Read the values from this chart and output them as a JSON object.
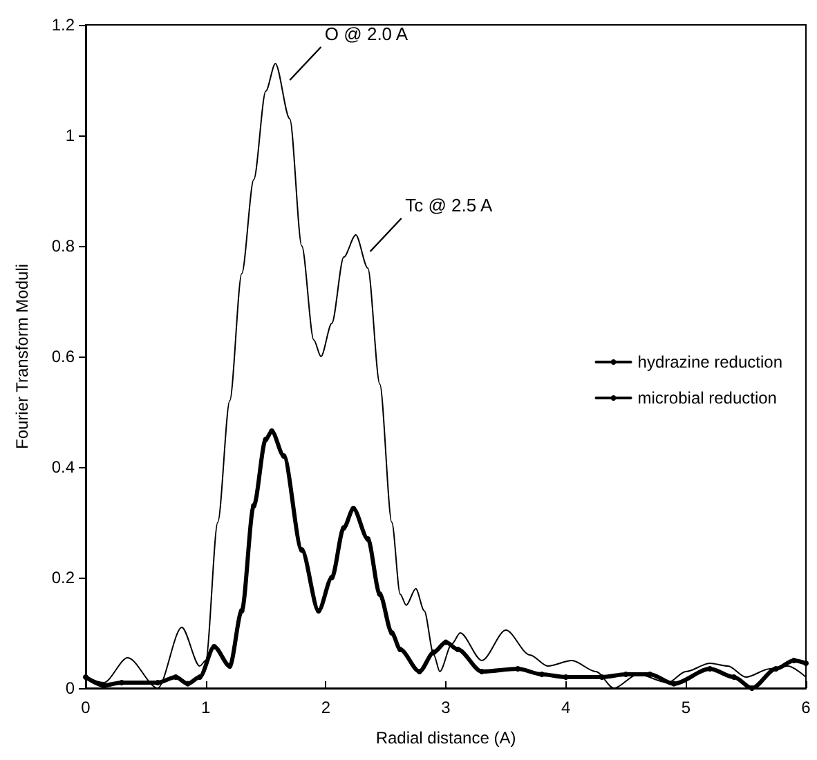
{
  "chart_data": {
    "type": "line",
    "xlabel": "Radial distance (A)",
    "ylabel": "Fourier Transform Moduli",
    "xlim": [
      0,
      6
    ],
    "xticks": [
      0,
      1,
      2,
      3,
      4,
      5,
      6
    ],
    "ylim": [
      0,
      1.2
    ],
    "yticks": [
      0,
      0.2,
      0.4,
      0.6,
      0.8,
      1,
      1.2
    ],
    "grid": false,
    "legend": "right",
    "series": [
      {
        "name": "hydrazine reduction",
        "color": "#000000",
        "marker": "circle",
        "x": [
          0,
          0.15,
          0.3,
          0.6,
          0.75,
          0.85,
          0.95,
          1.07,
          1.2,
          1.3,
          1.4,
          1.5,
          1.55,
          1.65,
          1.8,
          1.94,
          2.05,
          2.15,
          2.23,
          2.35,
          2.45,
          2.55,
          2.62,
          2.78,
          2.9,
          3.0,
          3.1,
          3.3,
          3.6,
          3.8,
          4.0,
          4.3,
          4.5,
          4.7,
          4.9,
          5.2,
          5.4,
          5.55,
          5.75,
          5.9,
          6.0
        ],
        "values": [
          0.02,
          0.005,
          0.01,
          0.01,
          0.02,
          0.008,
          0.02,
          0.075,
          0.04,
          0.14,
          0.33,
          0.45,
          0.465,
          0.42,
          0.25,
          0.14,
          0.2,
          0.29,
          0.325,
          0.27,
          0.17,
          0.1,
          0.07,
          0.03,
          0.065,
          0.083,
          0.07,
          0.03,
          0.035,
          0.025,
          0.02,
          0.02,
          0.025,
          0.025,
          0.008,
          0.035,
          0.02,
          0.0,
          0.035,
          0.05,
          0.045
        ]
      },
      {
        "name": "microbial reduction",
        "color": "#000000",
        "marker": "none",
        "x": [
          0,
          0.15,
          0.35,
          0.6,
          0.8,
          0.95,
          1.0,
          1.1,
          1.2,
          1.3,
          1.4,
          1.5,
          1.58,
          1.7,
          1.8,
          1.9,
          1.96,
          2.05,
          2.15,
          2.25,
          2.35,
          2.45,
          2.55,
          2.62,
          2.67,
          2.75,
          2.82,
          2.9,
          2.95,
          3.05,
          3.12,
          3.3,
          3.5,
          3.7,
          3.85,
          4.05,
          4.25,
          4.4,
          4.6,
          4.85,
          5.0,
          5.2,
          5.35,
          5.5,
          5.7,
          5.85,
          6.0
        ],
        "values": [
          0.02,
          0.01,
          0.055,
          0.0,
          0.11,
          0.04,
          0.05,
          0.3,
          0.52,
          0.75,
          0.92,
          1.08,
          1.13,
          1.03,
          0.8,
          0.63,
          0.6,
          0.66,
          0.78,
          0.82,
          0.76,
          0.55,
          0.3,
          0.17,
          0.15,
          0.18,
          0.14,
          0.06,
          0.03,
          0.08,
          0.1,
          0.05,
          0.105,
          0.06,
          0.04,
          0.05,
          0.03,
          0.0,
          0.025,
          0.01,
          0.03,
          0.045,
          0.04,
          0.02,
          0.035,
          0.04,
          0.02
        ]
      }
    ],
    "annotations": [
      {
        "text": "O @ 2.0 A",
        "x": 1.58,
        "y": 1.13
      },
      {
        "text": "Tc @ 2.5 A",
        "x": 2.25,
        "y": 0.82
      }
    ]
  }
}
